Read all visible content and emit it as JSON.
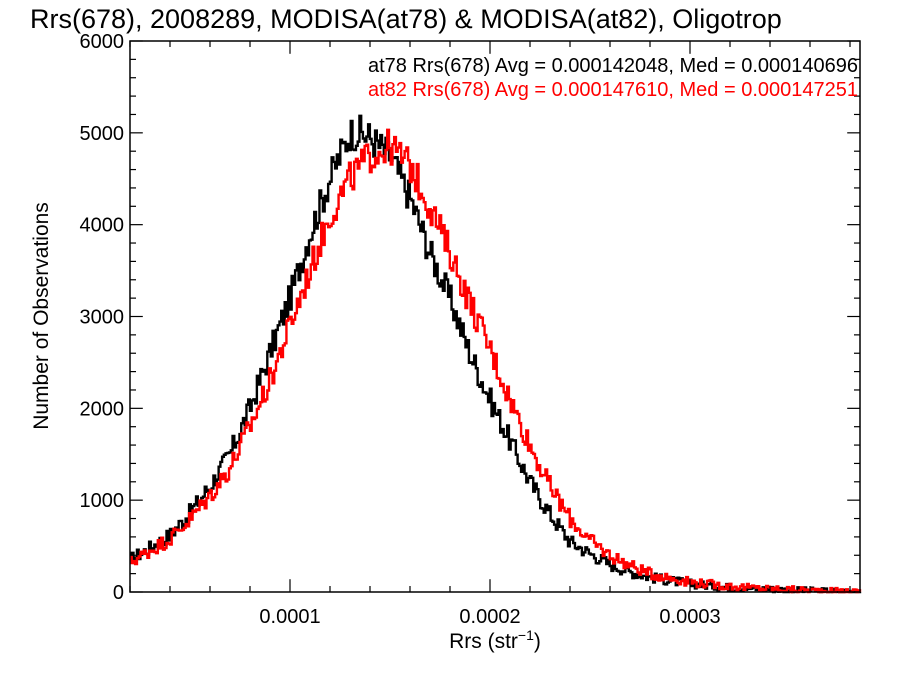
{
  "chart_data": {
    "type": "line",
    "title": "Rrs(678), 2008289, MODISA(at78) & MODISA(at82), Oligotrop",
    "xlabel_main": "Rrs (str",
    "xlabel_sup": "−1",
    "xlabel_close": ")",
    "ylabel": "Number of Observations",
    "xlim": [
      2e-05,
      0.000385
    ],
    "ylim": [
      0,
      6000
    ],
    "x_ticks": [
      0.0001,
      0.0002,
      0.0003
    ],
    "x_tick_labels": [
      "0.0001",
      "0.0002",
      "0.0003"
    ],
    "y_ticks": [
      0,
      1000,
      2000,
      3000,
      4000,
      5000,
      6000
    ],
    "y_tick_labels": [
      "0",
      "1000",
      "2000",
      "3000",
      "4000",
      "5000",
      "6000"
    ],
    "grid": false,
    "legend_position": "top-right",
    "series": [
      {
        "name": "at78",
        "color": "#000000",
        "annotation": "at78 Rrs(678) Avg = 0.000142048, Med = 0.000140696",
        "points": [
          [
            2e-05,
            350
          ],
          [
            3e-05,
            480
          ],
          [
            4e-05,
            620
          ],
          [
            5e-05,
            860
          ],
          [
            6e-05,
            1150
          ],
          [
            7e-05,
            1500
          ],
          [
            8e-05,
            2000
          ],
          [
            9e-05,
            2600
          ],
          [
            0.0001,
            3200
          ],
          [
            0.00011,
            3900
          ],
          [
            0.00012,
            4500
          ],
          [
            0.00013,
            5000
          ],
          [
            0.000135,
            5000
          ],
          [
            0.00014,
            4950
          ],
          [
            0.00015,
            4750
          ],
          [
            0.00016,
            4300
          ],
          [
            0.00017,
            3700
          ],
          [
            0.00018,
            3200
          ],
          [
            0.00019,
            2600
          ],
          [
            0.0002,
            2100
          ],
          [
            0.00021,
            1650
          ],
          [
            0.00022,
            1200
          ],
          [
            0.00023,
            850
          ],
          [
            0.00024,
            550
          ],
          [
            0.00025,
            420
          ],
          [
            0.00026,
            300
          ],
          [
            0.00027,
            220
          ],
          [
            0.00028,
            160
          ],
          [
            0.0003,
            90
          ],
          [
            0.00032,
            50
          ],
          [
            0.00034,
            30
          ],
          [
            0.00036,
            15
          ],
          [
            0.000385,
            5
          ]
        ]
      },
      {
        "name": "at82",
        "color": "#ff0000",
        "annotation": "at82 Rrs(678) Avg = 0.000147610, Med = 0.000147251",
        "points": [
          [
            2e-05,
            320
          ],
          [
            3e-05,
            450
          ],
          [
            4e-05,
            580
          ],
          [
            5e-05,
            790
          ],
          [
            6e-05,
            1050
          ],
          [
            7e-05,
            1350
          ],
          [
            8e-05,
            1800
          ],
          [
            9e-05,
            2300
          ],
          [
            0.0001,
            2900
          ],
          [
            0.00011,
            3500
          ],
          [
            0.00012,
            4100
          ],
          [
            0.00013,
            4500
          ],
          [
            0.00014,
            4750
          ],
          [
            0.00015,
            4850
          ],
          [
            0.00016,
            4650
          ],
          [
            0.00017,
            4200
          ],
          [
            0.00018,
            3700
          ],
          [
            0.00019,
            3150
          ],
          [
            0.0002,
            2650
          ],
          [
            0.00021,
            2100
          ],
          [
            0.00022,
            1600
          ],
          [
            0.00023,
            1150
          ],
          [
            0.00024,
            800
          ],
          [
            0.00025,
            560
          ],
          [
            0.00026,
            400
          ],
          [
            0.00027,
            290
          ],
          [
            0.00028,
            200
          ],
          [
            0.0003,
            110
          ],
          [
            0.00032,
            60
          ],
          [
            0.00034,
            35
          ],
          [
            0.00036,
            18
          ],
          [
            0.000385,
            5
          ]
        ]
      }
    ]
  }
}
